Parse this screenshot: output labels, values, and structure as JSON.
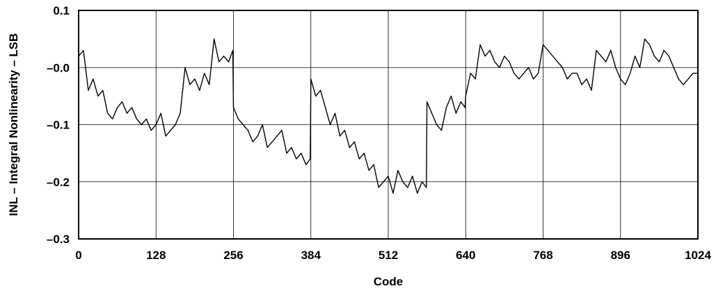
{
  "chart_data": {
    "type": "line",
    "title": "",
    "xlabel": "Code",
    "ylabel": "INL – Integral Nonlinearity – LSB",
    "xlim": [
      0,
      1024
    ],
    "ylim": [
      -0.3,
      0.1
    ],
    "grid": true,
    "x_ticks": [
      0,
      128,
      256,
      384,
      512,
      640,
      768,
      896,
      1024
    ],
    "x_tick_labels": [
      "0",
      "128",
      "256",
      "384",
      "512",
      "640",
      "768",
      "896",
      "1024"
    ],
    "y_ticks": [
      0.1,
      0.0,
      -0.1,
      -0.2,
      -0.3
    ],
    "y_tick_labels": [
      "0.1",
      "–0.0",
      "–0.1",
      "–0.2",
      "–0.3"
    ],
    "series": [
      {
        "x": [
          0,
          8,
          16,
          24,
          32,
          40,
          48,
          56,
          64,
          72,
          80,
          88,
          96,
          104,
          112,
          120,
          128,
          136,
          144,
          152,
          160,
          168,
          176,
          184,
          192,
          200,
          208,
          216,
          224,
          232,
          240,
          248,
          255,
          256,
          264,
          272,
          280,
          288,
          296,
          304,
          312,
          320,
          328,
          336,
          344,
          352,
          360,
          368,
          376,
          383,
          384,
          392,
          400,
          408,
          416,
          424,
          432,
          440,
          448,
          456,
          464,
          472,
          480,
          488,
          496,
          504,
          512,
          520,
          528,
          536,
          544,
          552,
          560,
          568,
          575,
          576,
          584,
          592,
          600,
          608,
          616,
          624,
          632,
          639,
          640,
          648,
          656,
          664,
          672,
          680,
          688,
          696,
          704,
          712,
          720,
          728,
          736,
          744,
          752,
          760,
          768,
          776,
          784,
          792,
          800,
          808,
          816,
          824,
          832,
          840,
          848,
          856,
          864,
          872,
          880,
          888,
          896,
          904,
          912,
          920,
          928,
          936,
          944,
          952,
          960,
          968,
          976,
          984,
          992,
          1000,
          1008,
          1016,
          1023
        ],
        "values": [
          0.02,
          0.03,
          -0.04,
          -0.02,
          -0.05,
          -0.04,
          -0.08,
          -0.09,
          -0.07,
          -0.06,
          -0.08,
          -0.07,
          -0.09,
          -0.1,
          -0.09,
          -0.11,
          -0.1,
          -0.08,
          -0.12,
          -0.11,
          -0.1,
          -0.08,
          0.0,
          -0.03,
          -0.02,
          -0.04,
          -0.01,
          -0.03,
          0.05,
          0.01,
          0.02,
          0.01,
          0.03,
          -0.07,
          -0.09,
          -0.1,
          -0.11,
          -0.13,
          -0.12,
          -0.1,
          -0.14,
          -0.13,
          -0.12,
          -0.11,
          -0.15,
          -0.14,
          -0.16,
          -0.15,
          -0.17,
          -0.16,
          -0.02,
          -0.05,
          -0.04,
          -0.07,
          -0.1,
          -0.08,
          -0.12,
          -0.11,
          -0.14,
          -0.13,
          -0.16,
          -0.15,
          -0.18,
          -0.17,
          -0.21,
          -0.2,
          -0.19,
          -0.22,
          -0.18,
          -0.2,
          -0.21,
          -0.19,
          -0.22,
          -0.2,
          -0.21,
          -0.06,
          -0.08,
          -0.1,
          -0.11,
          -0.07,
          -0.05,
          -0.08,
          -0.06,
          -0.07,
          -0.05,
          -0.01,
          -0.02,
          0.04,
          0.02,
          0.03,
          0.01,
          0.0,
          0.02,
          0.01,
          -0.01,
          -0.02,
          -0.01,
          0.0,
          -0.02,
          -0.01,
          0.04,
          0.03,
          0.02,
          0.01,
          0.0,
          -0.02,
          -0.01,
          -0.01,
          -0.03,
          -0.02,
          -0.04,
          0.03,
          0.02,
          0.01,
          0.03,
          0.0,
          -0.02,
          -0.03,
          -0.01,
          0.02,
          0.0,
          0.05,
          0.04,
          0.02,
          0.01,
          0.03,
          0.02,
          0.0,
          -0.02,
          -0.03,
          -0.02,
          -0.01,
          -0.01
        ]
      }
    ]
  }
}
